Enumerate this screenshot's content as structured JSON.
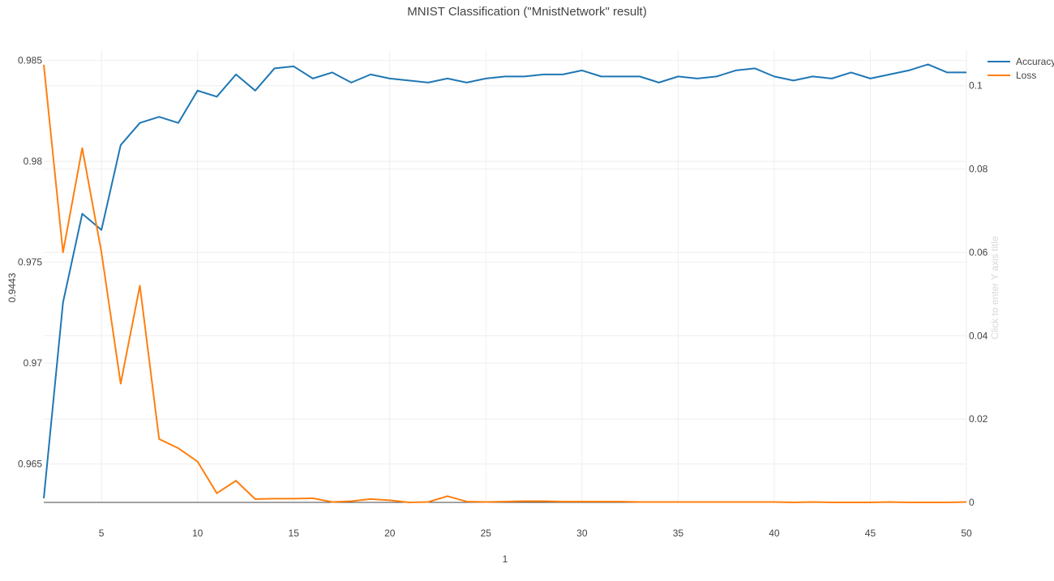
{
  "chart_data": {
    "type": "line",
    "title": "MNIST Classification (\"MnistNetwork\" result)",
    "xlabel": "1",
    "ylabel": "0.9443",
    "y2label": "Click to enter Y axis title",
    "xlim": [
      2,
      50
    ],
    "ylim": [
      0.9631,
      0.9855
    ],
    "y2lim": [
      0,
      0.1085
    ],
    "xticks": [
      5,
      10,
      15,
      20,
      25,
      30,
      35,
      40,
      45,
      50
    ],
    "yticks": [
      0.965,
      0.97,
      0.975,
      0.98,
      0.985
    ],
    "y2ticks": [
      0,
      0.02,
      0.04,
      0.06,
      0.08,
      0.1
    ],
    "legend_position": "top-right",
    "grid": true,
    "x": [
      2,
      3,
      4,
      5,
      6,
      7,
      8,
      9,
      10,
      11,
      12,
      13,
      14,
      15,
      16,
      17,
      18,
      19,
      20,
      21,
      22,
      23,
      24,
      25,
      26,
      27,
      28,
      29,
      30,
      31,
      32,
      33,
      34,
      35,
      36,
      37,
      38,
      39,
      40,
      41,
      42,
      43,
      44,
      45,
      46,
      47,
      48,
      49,
      50
    ],
    "series": [
      {
        "name": "Accuracy",
        "axis": "left",
        "color": "#1f77b4",
        "values": [
          0.9633,
          0.973,
          0.9774,
          0.9766,
          0.9808,
          0.9819,
          0.9822,
          0.9819,
          0.9835,
          0.9832,
          0.9843,
          0.9835,
          0.9846,
          0.9847,
          0.9841,
          0.9844,
          0.9839,
          0.9843,
          0.9841,
          0.984,
          0.9839,
          0.9841,
          0.9839,
          0.9841,
          0.9842,
          0.9842,
          0.9843,
          0.9843,
          0.9845,
          0.9842,
          0.9842,
          0.9842,
          0.9839,
          0.9842,
          0.9841,
          0.9842,
          0.9845,
          0.9846,
          0.9842,
          0.984,
          0.9842,
          0.9841,
          0.9844,
          0.9841,
          0.9843,
          0.9845,
          0.9848,
          0.9844,
          0.9844
        ]
      },
      {
        "name": "Loss",
        "axis": "right",
        "color": "#ff7f0e",
        "values": [
          0.105,
          0.06,
          0.085,
          0.06,
          0.0285,
          0.052,
          0.0152,
          0.013,
          0.0098,
          0.0022,
          0.0052,
          0.0008,
          0.0009,
          0.0009,
          0.001,
          0.0001,
          0.0003,
          0.0008,
          0.0005,
          0.0,
          0.0001,
          0.0015,
          0.0002,
          0.0001,
          0.0002,
          0.0003,
          0.0003,
          0.0002,
          0.0002,
          0.0002,
          0.0002,
          0.0001,
          0.0001,
          0.0001,
          0.0001,
          0.0001,
          0.0001,
          0.0001,
          0.0001,
          0.0,
          0.0001,
          0.0,
          0.0,
          0.0,
          0.0001,
          0.0,
          0.0,
          0.0,
          0.0001
        ]
      }
    ]
  }
}
